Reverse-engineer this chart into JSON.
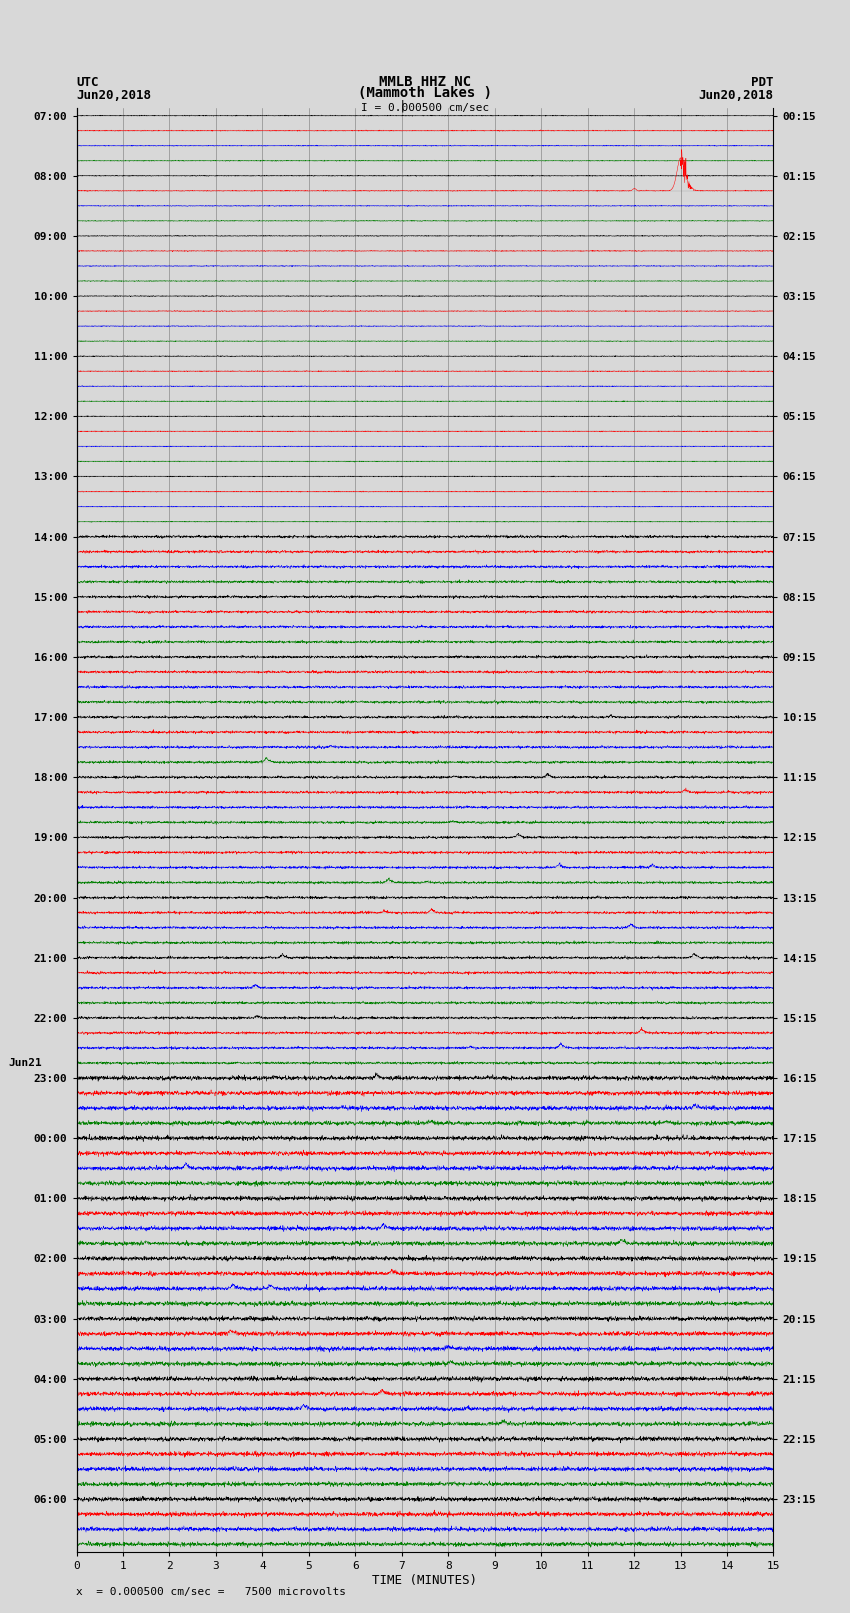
{
  "title_line1": "MMLB HHZ NC",
  "title_line2": "(Mammoth Lakes )",
  "scale_label": "I = 0.000500 cm/sec",
  "utc_label": "UTC",
  "utc_date": "Jun20,2018",
  "pdt_label": "PDT",
  "pdt_date": "Jun20,2018",
  "bottom_label": "x  = 0.000500 cm/sec =   7500 microvolts",
  "xlabel": "TIME (MINUTES)",
  "left_times": [
    "07:00",
    "08:00",
    "09:00",
    "10:00",
    "11:00",
    "12:00",
    "13:00",
    "14:00",
    "15:00",
    "16:00",
    "17:00",
    "18:00",
    "19:00",
    "20:00",
    "21:00",
    "22:00",
    "23:00",
    "00:00",
    "01:00",
    "02:00",
    "03:00",
    "04:00",
    "05:00",
    "06:00"
  ],
  "right_times": [
    "00:15",
    "01:15",
    "02:15",
    "03:15",
    "04:15",
    "05:15",
    "06:15",
    "07:15",
    "08:15",
    "09:15",
    "10:15",
    "11:15",
    "12:15",
    "13:15",
    "14:15",
    "15:15",
    "16:15",
    "17:15",
    "18:15",
    "19:15",
    "20:15",
    "21:15",
    "22:15",
    "23:15"
  ],
  "num_rows": 96,
  "num_groups": 24,
  "rows_per_group": 4,
  "row_colors_cycle": [
    "black",
    "red",
    "blue",
    "green"
  ],
  "big_event_group": 1,
  "big_event_row_in_group": 1,
  "big_event_minute": 13.0,
  "big_event_amplitude": 2.2,
  "background_color": "#d8d8d8",
  "grid_color": "#888888",
  "figsize": [
    8.5,
    16.13
  ],
  "jun21_group": 16
}
